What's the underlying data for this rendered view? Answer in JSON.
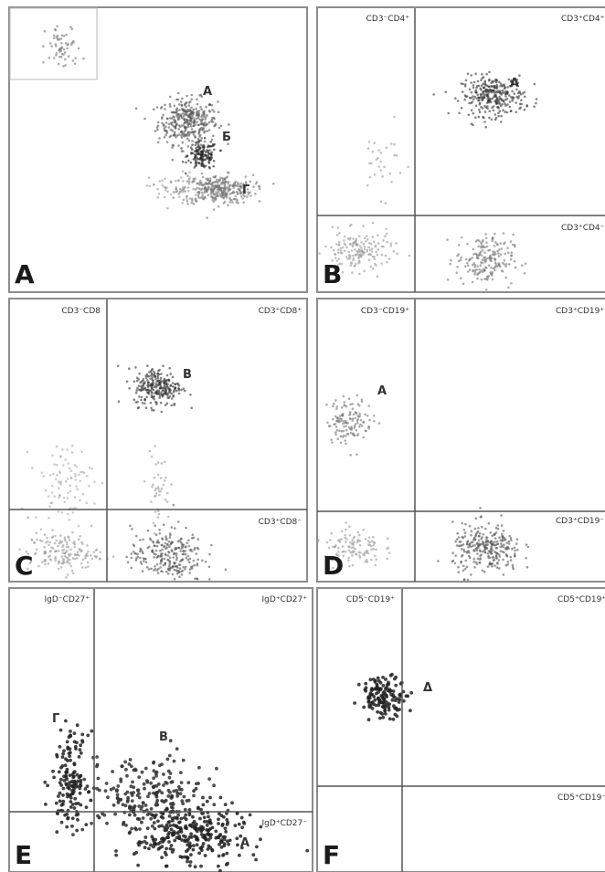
{
  "figure": {
    "panels": [
      {
        "letter": "A",
        "quadrants": [],
        "cluster_labels": [
          "A",
          "Б",
          "Г"
        ]
      },
      {
        "letter": "B",
        "quadrants": [
          "CD3⁻CD4⁺",
          "CD3⁺CD4⁺",
          "CD3⁺CD4⁻"
        ],
        "cluster_labels": [
          "A"
        ]
      },
      {
        "letter": "C",
        "quadrants": [
          "CD3⁻CD8",
          "CD3⁺CD8⁺",
          "CD3⁺CD8⁻"
        ],
        "cluster_labels": [
          "B"
        ]
      },
      {
        "letter": "D",
        "quadrants": [
          "CD3⁻CD19⁺",
          "CD3⁺CD19⁺",
          "CD3⁺CD19⁻"
        ],
        "cluster_labels": [
          "A"
        ]
      },
      {
        "letter": "E",
        "quadrants": [
          "IgD⁻CD27⁺",
          "IgD⁺CD27⁺",
          "IgD⁺CD27⁻"
        ],
        "cluster_labels": [
          "Г",
          "B",
          "A"
        ]
      },
      {
        "letter": "F",
        "quadrants": [
          "CD5⁻CD19⁺",
          "CD5⁺CD19⁺",
          "CD5⁺CD19⁻"
        ],
        "cluster_labels": [
          "Δ"
        ]
      }
    ]
  },
  "chart_data": [
    {
      "type": "scatter",
      "panel": "A",
      "description_free": true,
      "populations": [
        {
          "label": "A",
          "center": [
            0.6,
            0.6
          ],
          "spread": [
            0.05,
            0.04
          ],
          "n": 340,
          "color": "#555555"
        },
        {
          "label": "Б",
          "center": [
            0.65,
            0.48
          ],
          "spread": [
            0.025,
            0.025
          ],
          "n": 150,
          "color": "#222222"
        },
        {
          "label": "Г",
          "center": [
            0.7,
            0.36
          ],
          "spread": [
            0.06,
            0.025
          ],
          "n": 320,
          "color": "#777777"
        },
        {
          "label": "",
          "center": [
            0.55,
            0.36
          ],
          "spread": [
            0.04,
            0.03
          ],
          "n": 50,
          "color": "#999999"
        },
        {
          "label": "",
          "center": [
            0.18,
            0.86
          ],
          "spread": [
            0.03,
            0.04
          ],
          "n": 60,
          "color": "#777777"
        }
      ]
    },
    {
      "type": "scatter",
      "panel": "B",
      "quadrant_labels": [
        "CD3⁻CD4⁺",
        "CD3⁺CD4⁺",
        "CD3⁺CD4⁻"
      ],
      "gate": {
        "x": 0.34,
        "y": 0.27
      },
      "populations": [
        {
          "label": "A",
          "center": [
            0.61,
            0.69
          ],
          "spread": [
            0.055,
            0.035
          ],
          "n": 300,
          "color": "#333333"
        },
        {
          "label": "",
          "center": [
            0.22,
            0.46
          ],
          "spread": [
            0.04,
            0.06
          ],
          "n": 30,
          "color": "#999999"
        },
        {
          "label": "",
          "center": [
            0.14,
            0.14
          ],
          "spread": [
            0.06,
            0.035
          ],
          "n": 170,
          "color": "#999999"
        },
        {
          "label": "",
          "center": [
            0.58,
            0.11
          ],
          "spread": [
            0.05,
            0.045
          ],
          "n": 190,
          "color": "#777777"
        }
      ]
    },
    {
      "type": "scatter",
      "panel": "C",
      "quadrant_labels": [
        "CD3⁻CD8",
        "CD3⁺CD8⁺",
        "CD3⁺CD8⁻"
      ],
      "gate": {
        "x": 0.33,
        "y": 0.21
      },
      "populations": [
        {
          "label": "B",
          "center": [
            0.5,
            0.69
          ],
          "spread": [
            0.04,
            0.035
          ],
          "n": 260,
          "color": "#333333"
        },
        {
          "label": "",
          "center": [
            0.5,
            0.33
          ],
          "spread": [
            0.02,
            0.06
          ],
          "n": 40,
          "color": "#999999"
        },
        {
          "label": "",
          "center": [
            0.18,
            0.35
          ],
          "spread": [
            0.05,
            0.07
          ],
          "n": 90,
          "color": "#aaaaaa"
        },
        {
          "label": "",
          "center": [
            0.18,
            0.1
          ],
          "spread": [
            0.06,
            0.035
          ],
          "n": 160,
          "color": "#999999"
        },
        {
          "label": "",
          "center": [
            0.53,
            0.09
          ],
          "spread": [
            0.06,
            0.05
          ],
          "n": 260,
          "color": "#555555"
        }
      ]
    },
    {
      "type": "scatter",
      "panel": "D",
      "quadrant_labels": [
        "CD3⁻CD19⁺",
        "CD3⁺CD19⁺",
        "CD3⁺CD19⁻"
      ],
      "gate": {
        "x": 0.34,
        "y": 0.21
      },
      "populations": [
        {
          "label": "A",
          "center": [
            0.11,
            0.57
          ],
          "spread": [
            0.04,
            0.04
          ],
          "n": 130,
          "color": "#777777"
        },
        {
          "label": "",
          "center": [
            0.12,
            0.12
          ],
          "spread": [
            0.05,
            0.035
          ],
          "n": 110,
          "color": "#999999"
        },
        {
          "label": "",
          "center": [
            0.59,
            0.11
          ],
          "spread": [
            0.06,
            0.045
          ],
          "n": 280,
          "color": "#555555"
        }
      ]
    },
    {
      "type": "scatter",
      "panel": "E",
      "quadrant_labels": [
        "IgD⁻CD27⁺",
        "IgD⁺CD27⁺",
        "IgD⁺CD27⁻"
      ],
      "gate": {
        "x": 0.28,
        "y": 0.21
      },
      "populations": [
        {
          "label": "Г",
          "center": [
            0.2,
            0.33
          ],
          "spread": [
            0.03,
            0.08
          ],
          "n": 150,
          "color": "#222222"
        },
        {
          "label": "B",
          "center": [
            0.45,
            0.27
          ],
          "spread": [
            0.1,
            0.07
          ],
          "n": 200,
          "color": "#333333"
        },
        {
          "label": "A",
          "center": [
            0.6,
            0.13
          ],
          "spread": [
            0.09,
            0.06
          ],
          "n": 300,
          "color": "#222222"
        }
      ]
    },
    {
      "type": "scatter",
      "panel": "F",
      "quadrant_labels": [
        "CD5⁻CD19⁺",
        "CD5⁺CD19⁺",
        "CD5⁺CD19⁻"
      ],
      "gate": {
        "x": 0.3,
        "y": 0.33
      },
      "populations": [
        {
          "label": "Δ",
          "center": [
            0.23,
            0.62
          ],
          "spread": [
            0.04,
            0.035
          ],
          "n": 140,
          "color": "#222222"
        }
      ]
    }
  ]
}
